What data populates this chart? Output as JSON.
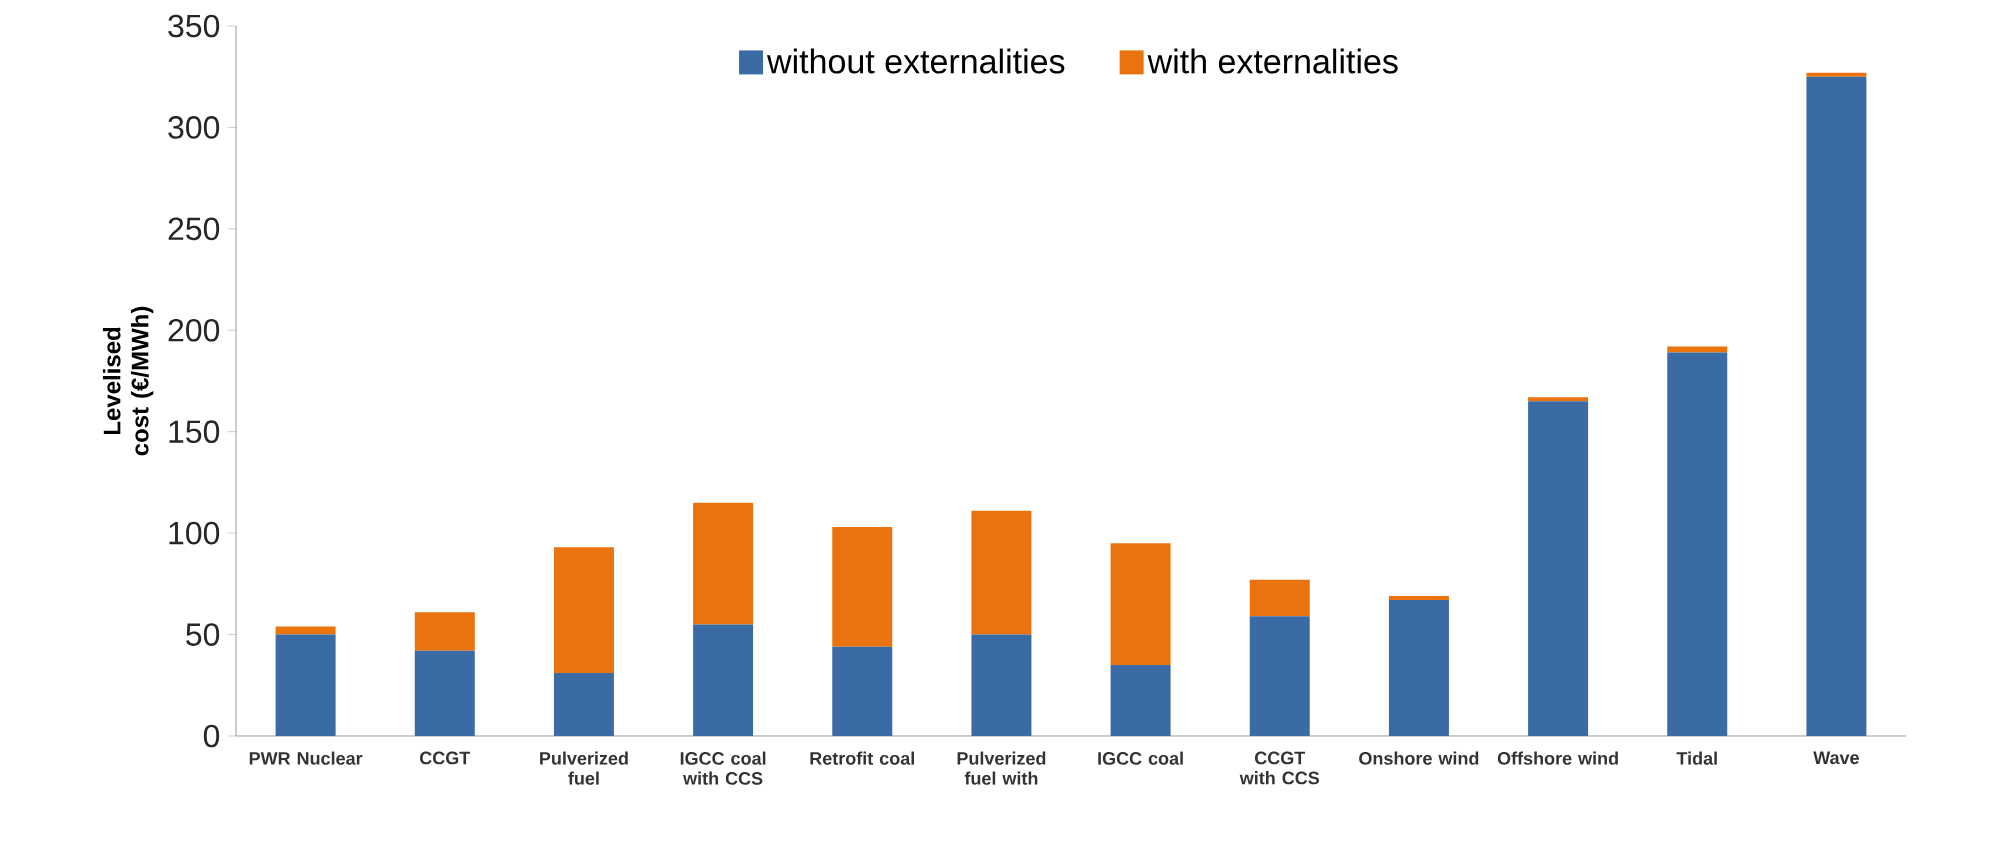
{
  "chart_data": {
    "type": "bar",
    "stacked": true,
    "ylabel": "Levelised cost (€/MWh)",
    "categories": [
      "PWR Nuclear",
      "CCGT",
      "Pulverized fuel",
      "IGCC coal with CCS",
      "Retrofit coal",
      "Pulverized fuel with",
      "IGCC coal",
      "CCGT with CCS",
      "Onshore wind",
      "Offshore wind",
      "Tidal",
      "Wave"
    ],
    "series": [
      {
        "name": "without externalities",
        "color": "#3a6ba5",
        "values": [
          50,
          42,
          31,
          55,
          44,
          50,
          35,
          59,
          67,
          165,
          189,
          325
        ]
      },
      {
        "name": "with externalities",
        "color": "#e8730f",
        "values": [
          4,
          19,
          62,
          60,
          59,
          61,
          60,
          18,
          2,
          2,
          3,
          2
        ]
      }
    ],
    "ylim": [
      0,
      350
    ],
    "yticks": [
      0,
      50,
      100,
      150,
      200,
      250,
      300,
      350
    ],
    "legend": "top",
    "grid": false
  }
}
